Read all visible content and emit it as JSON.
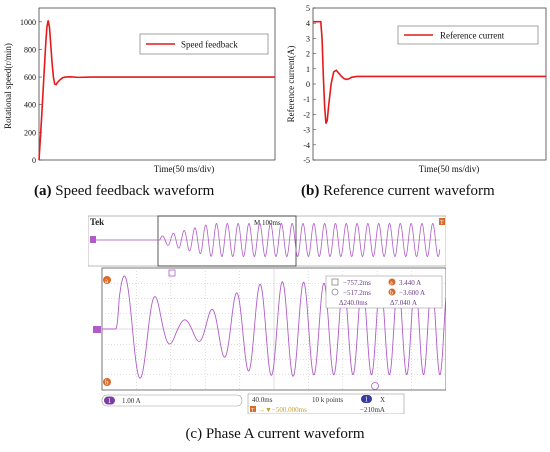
{
  "colors": {
    "trace_red": "#e41a1c",
    "scope_purple": "#b05cc8",
    "scope_bg": "#ffffff",
    "scope_grid": "#b9b9b9",
    "scope_marker": "#d86a2a"
  },
  "chart_data": [
    {
      "type": "line",
      "title": "",
      "caption_bold": "(a)",
      "caption_text": " Speed feedback waveform",
      "xlabel": "Time(50 ms/div)",
      "ylabel": "Rotational speed(r/min)",
      "ylim": [
        0,
        1100
      ],
      "yticks": [
        0,
        200,
        400,
        600,
        800,
        1000
      ],
      "grid": false,
      "legend_position": "top-right",
      "series": [
        {
          "name": "Speed feedback",
          "x_div": [
            0,
            0.05,
            0.1,
            0.15,
            0.2,
            0.25,
            0.3,
            0.35,
            0.4,
            0.45,
            0.5,
            0.55,
            0.6,
            0.65,
            0.7,
            0.8,
            0.9,
            1.0,
            1.2,
            1.5,
            2.0,
            3.0,
            4.0,
            5.0,
            6.0,
            7.0,
            8.0,
            9.0
          ],
          "values": [
            0,
            150,
            310,
            480,
            650,
            820,
            960,
            1010,
            960,
            830,
            700,
            600,
            550,
            545,
            560,
            580,
            595,
            600,
            602,
            598,
            600,
            600,
            600,
            600,
            600,
            600,
            600,
            600
          ]
        }
      ]
    },
    {
      "type": "line",
      "title": "",
      "caption_bold": "(b)",
      "caption_text": " Reference current waveform",
      "xlabel": "Time(50 ms/div)",
      "ylabel": "Reference current(A)",
      "ylim": [
        -5,
        5
      ],
      "yticks": [
        -5,
        -4,
        -3,
        -2,
        -1,
        0,
        1,
        2,
        3,
        4,
        5
      ],
      "grid": false,
      "legend_position": "top-right",
      "series": [
        {
          "name": "Reference current",
          "x_div": [
            0,
            0.3,
            0.35,
            0.4,
            0.45,
            0.5,
            0.55,
            0.6,
            0.7,
            0.8,
            0.9,
            1.0,
            1.1,
            1.2,
            1.3,
            1.4,
            1.5,
            1.7,
            2.0,
            3.0,
            4.0,
            5.0,
            6.0,
            7.0,
            8.0,
            9.0
          ],
          "values": [
            4.1,
            4.1,
            3.0,
            0.5,
            -1.5,
            -2.6,
            -2.4,
            -1.5,
            0.0,
            0.8,
            0.9,
            0.7,
            0.5,
            0.35,
            0.3,
            0.35,
            0.45,
            0.5,
            0.5,
            0.5,
            0.5,
            0.5,
            0.5,
            0.5,
            0.5,
            0.5
          ]
        }
      ]
    },
    {
      "type": "line",
      "title": "",
      "caption_text": "(c) Phase A current waveform",
      "brand": "Tek",
      "timebase_top": "M 100ms",
      "marker_trig": "T",
      "marker_1": "1",
      "cursor_a": "a",
      "cursor_b": "b",
      "readouts": {
        "cursor1_time": "−757.2ms",
        "cursor2_time": "−517.2ms",
        "delta_time": "Δ240.0ms",
        "cursor_a_val": "3.440 A",
        "cursor_b_val": "−3.600 A",
        "delta_val": "Δ7.040 A",
        "badge_a": "a",
        "badge_b": "b"
      },
      "status": {
        "channel": "1",
        "scale": "1.00 A",
        "timebase": "40.0ms",
        "points": "10 k points",
        "trigger_offset": "→▼−500.000ms",
        "trigger_channel": "1",
        "trigger_coupling": "X",
        "trigger_level": "−210mA"
      },
      "ylim": [
        -4,
        4
      ],
      "series": [
        {
          "name": "",
          "unit": "A",
          "time_div": [
            0,
            0.4,
            0.5,
            0.9,
            1.35,
            1.8,
            2.2,
            2.6,
            3.0,
            3.4,
            3.85,
            4.3,
            4.75,
            5.2,
            5.7,
            6.2,
            6.7,
            7.2,
            7.7,
            8.2,
            8.7,
            9.2,
            9.7
          ],
          "peak_amplitude_A": [
            0,
            0,
            3.4,
            3.6,
            2.8,
            1.3,
            0.6,
            0.6,
            1.0,
            1.6,
            2.3,
            2.8,
            3.0,
            3.1,
            3.1,
            3.0,
            3.0,
            3.0,
            3.0,
            3.0,
            3.0,
            3.0,
            3.0
          ]
        }
      ]
    }
  ]
}
